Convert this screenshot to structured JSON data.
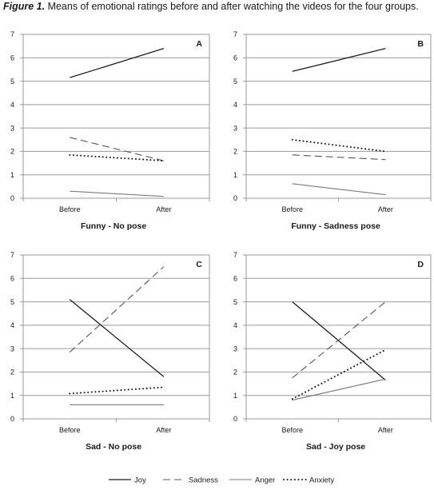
{
  "caption": {
    "label": "Figure 1.",
    "text": " Means of emotional ratings before and after watching the videos for the four groups."
  },
  "chart_data": [
    {
      "type": "line",
      "panel_label": "A",
      "title": "Funny - No pose",
      "categories": [
        "Before",
        "After"
      ],
      "ylim": [
        0,
        7
      ],
      "yticks": [
        0,
        1,
        2,
        3,
        4,
        5,
        6,
        7
      ],
      "grid": true,
      "series": [
        {
          "name": "Joy",
          "values": [
            5.15,
            6.4
          ]
        },
        {
          "name": "Sadness",
          "values": [
            2.6,
            1.6
          ]
        },
        {
          "name": "Anger",
          "values": [
            0.3,
            0.08
          ]
        },
        {
          "name": "Anxiety",
          "values": [
            1.85,
            1.6
          ]
        }
      ]
    },
    {
      "type": "line",
      "panel_label": "B",
      "title": "Funny - Sadness pose",
      "categories": [
        "Before",
        "After"
      ],
      "ylim": [
        0,
        7
      ],
      "yticks": [
        0,
        1,
        2,
        3,
        4,
        5,
        6,
        7
      ],
      "grid": true,
      "series": [
        {
          "name": "Joy",
          "values": [
            5.42,
            6.4
          ]
        },
        {
          "name": "Sadness",
          "values": [
            1.85,
            1.65
          ]
        },
        {
          "name": "Anger",
          "values": [
            0.62,
            0.15
          ]
        },
        {
          "name": "Anxiety",
          "values": [
            2.5,
            2.0
          ]
        }
      ]
    },
    {
      "type": "line",
      "panel_label": "C",
      "title": "Sad - No pose",
      "categories": [
        "Before",
        "After"
      ],
      "ylim": [
        0,
        7
      ],
      "yticks": [
        0,
        1,
        2,
        3,
        4,
        5,
        6,
        7
      ],
      "grid": true,
      "series": [
        {
          "name": "Joy",
          "values": [
            5.1,
            1.8
          ]
        },
        {
          "name": "Sadness",
          "values": [
            2.85,
            6.5
          ]
        },
        {
          "name": "Anger",
          "values": [
            0.6,
            0.6
          ]
        },
        {
          "name": "Anxiety",
          "values": [
            1.08,
            1.35
          ]
        }
      ]
    },
    {
      "type": "line",
      "panel_label": "D",
      "title": "Sad - Joy pose",
      "categories": [
        "Before",
        "After"
      ],
      "ylim": [
        0,
        7
      ],
      "yticks": [
        0,
        1,
        2,
        3,
        4,
        5,
        6,
        7
      ],
      "grid": true,
      "series": [
        {
          "name": "Joy",
          "values": [
            5.0,
            1.65
          ]
        },
        {
          "name": "Sadness",
          "values": [
            1.75,
            5.0
          ]
        },
        {
          "name": "Anger",
          "values": [
            0.8,
            1.7
          ]
        },
        {
          "name": "Anxiety",
          "values": [
            0.85,
            2.95
          ]
        }
      ]
    }
  ],
  "legend": {
    "placement": "bottom",
    "items": [
      {
        "label": "Joy",
        "style": "solid"
      },
      {
        "label": "Sadness",
        "style": "dashed"
      },
      {
        "label": "Anger",
        "style": "solid-grey"
      },
      {
        "label": "Anxiety",
        "style": "dotted"
      }
    ]
  },
  "colors": {
    "joy": "#1f1f1f",
    "sadness": "#555555",
    "anger": "#7a7a7a",
    "anxiety": "#1a1a1a",
    "frame": "#9a9a9a",
    "grid": "#9a9a9a"
  }
}
